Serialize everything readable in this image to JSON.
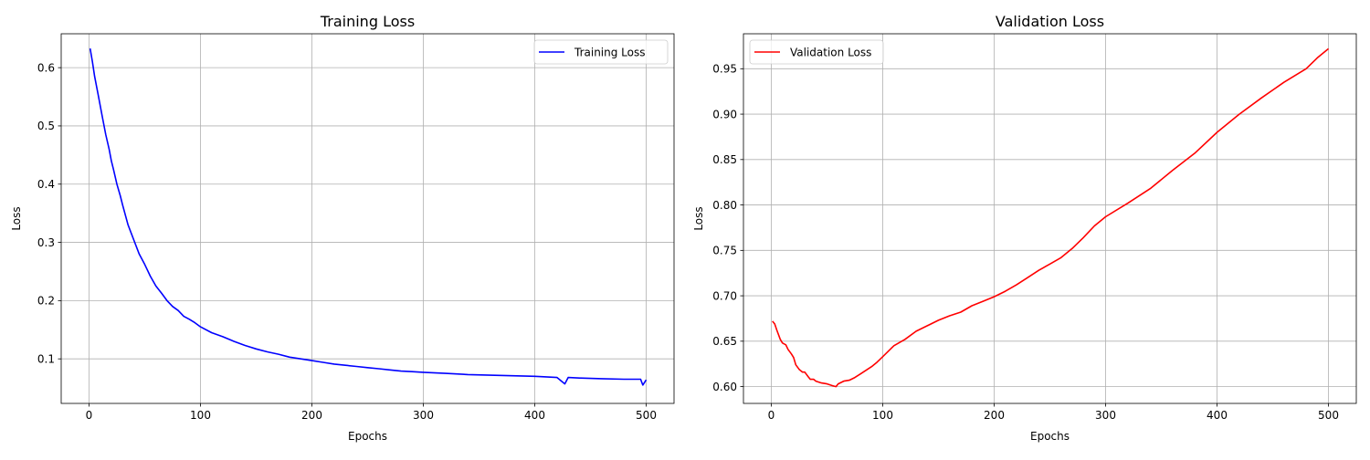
{
  "chart_data": [
    {
      "type": "line",
      "title": "Training Loss",
      "xlabel": "Epochs",
      "ylabel": "Loss",
      "xlim": [
        -25,
        525
      ],
      "ylim": [
        0.0235,
        0.6582
      ],
      "xticks": [
        0,
        100,
        200,
        300,
        400,
        500
      ],
      "xtick_labels": [
        "0",
        "100",
        "200",
        "300",
        "400",
        "500"
      ],
      "yticks": [
        0.1,
        0.2,
        0.3,
        0.4,
        0.5,
        0.6
      ],
      "ytick_labels": [
        "0.1",
        "0.2",
        "0.3",
        "0.4",
        "0.5",
        "0.6"
      ],
      "grid": true,
      "legend_position": "top-right",
      "series": [
        {
          "name": "Training Loss",
          "color": "#0000ff",
          "x": [
            1,
            3,
            5,
            8,
            10,
            12,
            15,
            18,
            20,
            22,
            25,
            28,
            30,
            35,
            40,
            45,
            50,
            55,
            60,
            65,
            70,
            75,
            80,
            85,
            90,
            95,
            100,
            110,
            120,
            130,
            140,
            150,
            160,
            170,
            180,
            190,
            200,
            210,
            220,
            230,
            240,
            250,
            260,
            270,
            280,
            290,
            300,
            320,
            340,
            360,
            380,
            400,
            420,
            427,
            430,
            440,
            460,
            480,
            495,
            497,
            500
          ],
          "y": [
            0.633,
            0.61,
            0.585,
            0.555,
            0.535,
            0.515,
            0.485,
            0.46,
            0.44,
            0.425,
            0.4,
            0.38,
            0.365,
            0.33,
            0.305,
            0.28,
            0.262,
            0.242,
            0.225,
            0.213,
            0.2,
            0.19,
            0.183,
            0.173,
            0.168,
            0.162,
            0.155,
            0.145,
            0.138,
            0.13,
            0.123,
            0.117,
            0.112,
            0.108,
            0.103,
            0.1,
            0.097,
            0.094,
            0.091,
            0.089,
            0.087,
            0.085,
            0.083,
            0.081,
            0.079,
            0.078,
            0.077,
            0.075,
            0.073,
            0.072,
            0.071,
            0.07,
            0.068,
            0.057,
            0.068,
            0.067,
            0.066,
            0.065,
            0.065,
            0.055,
            0.064
          ]
        }
      ]
    },
    {
      "type": "line",
      "title": "Validation Loss",
      "xlabel": "Epochs",
      "ylabel": "Loss",
      "xlim": [
        -25,
        525
      ],
      "ylim": [
        0.5815,
        0.9885
      ],
      "xticks": [
        0,
        100,
        200,
        300,
        400,
        500
      ],
      "xtick_labels": [
        "0",
        "100",
        "200",
        "300",
        "400",
        "500"
      ],
      "yticks": [
        0.6,
        0.65,
        0.7,
        0.75,
        0.8,
        0.85,
        0.9,
        0.95
      ],
      "ytick_labels": [
        "0.60",
        "0.65",
        "0.70",
        "0.75",
        "0.80",
        "0.85",
        "0.90",
        "0.95"
      ],
      "grid": true,
      "legend_position": "top-left",
      "series": [
        {
          "name": "Validation Loss",
          "color": "#ff0000",
          "x": [
            1,
            3,
            5,
            8,
            10,
            13,
            15,
            18,
            20,
            22,
            25,
            28,
            30,
            33,
            35,
            38,
            40,
            45,
            50,
            55,
            58,
            60,
            65,
            70,
            75,
            80,
            85,
            90,
            95,
            100,
            110,
            120,
            130,
            140,
            150,
            160,
            170,
            180,
            190,
            200,
            210,
            220,
            230,
            240,
            250,
            260,
            270,
            280,
            290,
            300,
            320,
            340,
            360,
            380,
            400,
            420,
            440,
            460,
            480,
            490,
            500
          ],
          "y": [
            0.672,
            0.669,
            0.662,
            0.652,
            0.648,
            0.646,
            0.641,
            0.636,
            0.632,
            0.624,
            0.619,
            0.616,
            0.616,
            0.611,
            0.608,
            0.608,
            0.606,
            0.604,
            0.603,
            0.601,
            0.6,
            0.603,
            0.606,
            0.607,
            0.61,
            0.614,
            0.618,
            0.622,
            0.627,
            0.633,
            0.645,
            0.652,
            0.661,
            0.667,
            0.673,
            0.678,
            0.682,
            0.689,
            0.694,
            0.699,
            0.705,
            0.712,
            0.72,
            0.728,
            0.735,
            0.742,
            0.752,
            0.764,
            0.777,
            0.787,
            0.802,
            0.818,
            0.838,
            0.857,
            0.88,
            0.9,
            0.918,
            0.935,
            0.95,
            0.962,
            0.972
          ]
        }
      ]
    }
  ]
}
